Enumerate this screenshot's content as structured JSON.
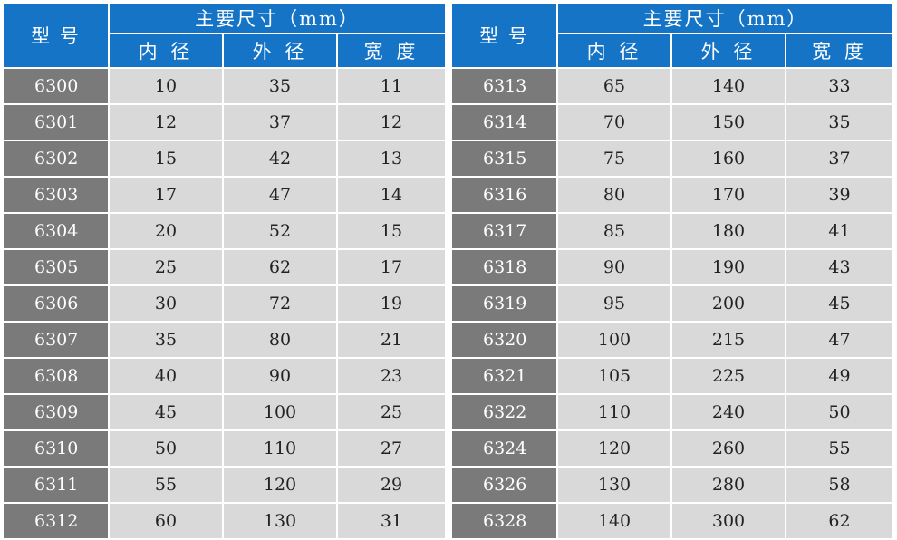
{
  "colors": {
    "header_bg": "#1674c6",
    "model_bg": "#7a7a7a",
    "cell_bg": "#d9d9d9"
  },
  "header": {
    "model": "型 号",
    "dimensions": "主要尺寸（mm）",
    "inner": "内 径",
    "outer": "外 径",
    "width": "宽 度"
  },
  "left_rows": [
    [
      "6300",
      "10",
      "35",
      "11"
    ],
    [
      "6301",
      "12",
      "37",
      "12"
    ],
    [
      "6302",
      "15",
      "42",
      "13"
    ],
    [
      "6303",
      "17",
      "47",
      "14"
    ],
    [
      "6304",
      "20",
      "52",
      "15"
    ],
    [
      "6305",
      "25",
      "62",
      "17"
    ],
    [
      "6306",
      "30",
      "72",
      "19"
    ],
    [
      "6307",
      "35",
      "80",
      "21"
    ],
    [
      "6308",
      "40",
      "90",
      "23"
    ],
    [
      "6309",
      "45",
      "100",
      "25"
    ],
    [
      "6310",
      "50",
      "110",
      "27"
    ],
    [
      "6311",
      "55",
      "120",
      "29"
    ],
    [
      "6312",
      "60",
      "130",
      "31"
    ]
  ],
  "right_rows": [
    [
      "6313",
      "65",
      "140",
      "33"
    ],
    [
      "6314",
      "70",
      "150",
      "35"
    ],
    [
      "6315",
      "75",
      "160",
      "37"
    ],
    [
      "6316",
      "80",
      "170",
      "39"
    ],
    [
      "6317",
      "85",
      "180",
      "41"
    ],
    [
      "6318",
      "90",
      "190",
      "43"
    ],
    [
      "6319",
      "95",
      "200",
      "45"
    ],
    [
      "6320",
      "100",
      "215",
      "47"
    ],
    [
      "6321",
      "105",
      "225",
      "49"
    ],
    [
      "6322",
      "110",
      "240",
      "50"
    ],
    [
      "6324",
      "120",
      "260",
      "55"
    ],
    [
      "6326",
      "130",
      "280",
      "58"
    ],
    [
      "6328",
      "140",
      "300",
      "62"
    ]
  ]
}
